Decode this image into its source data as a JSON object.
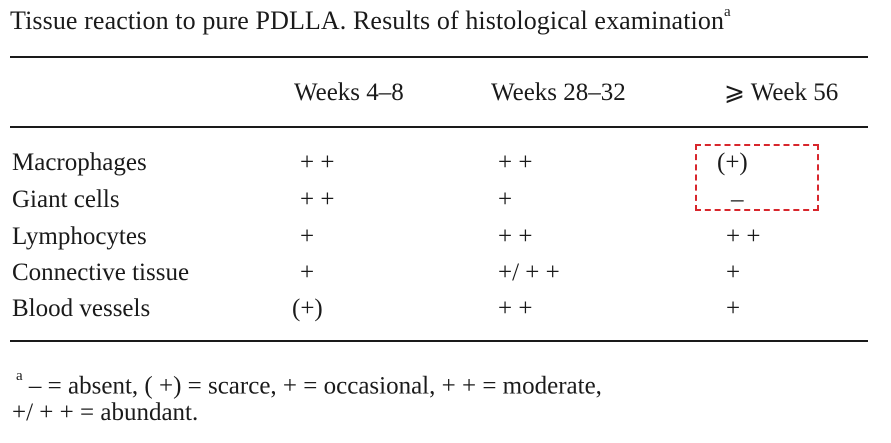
{
  "caption": {
    "text": "Tissue reaction to pure PDLLA. Results of histological examination",
    "marker": "a"
  },
  "table": {
    "headers": [
      "Weeks 4–8",
      "Weeks 28–32",
      "⩾ Week 56"
    ],
    "rows": [
      {
        "label": "Macrophages",
        "values": [
          "+ +",
          "+ +",
          "(+)"
        ]
      },
      {
        "label": "Giant cells",
        "values": [
          "+ +",
          "+",
          "–"
        ]
      },
      {
        "label": "Lymphocytes",
        "values": [
          "+",
          "+ +",
          "+ +"
        ]
      },
      {
        "label": "Connective tissue",
        "values": [
          "+",
          "+/ + +",
          "+"
        ]
      },
      {
        "label": "Blood vessels",
        "values": [
          "(+)",
          "+ +",
          "+"
        ]
      }
    ],
    "highlight_color": "#d8262c"
  },
  "footnote": {
    "marker": "a",
    "line1": " –  = absent,  ( +) = scarce,    + = occasional,   + + = moderate,",
    "line2": "+/ + + = abundant."
  }
}
